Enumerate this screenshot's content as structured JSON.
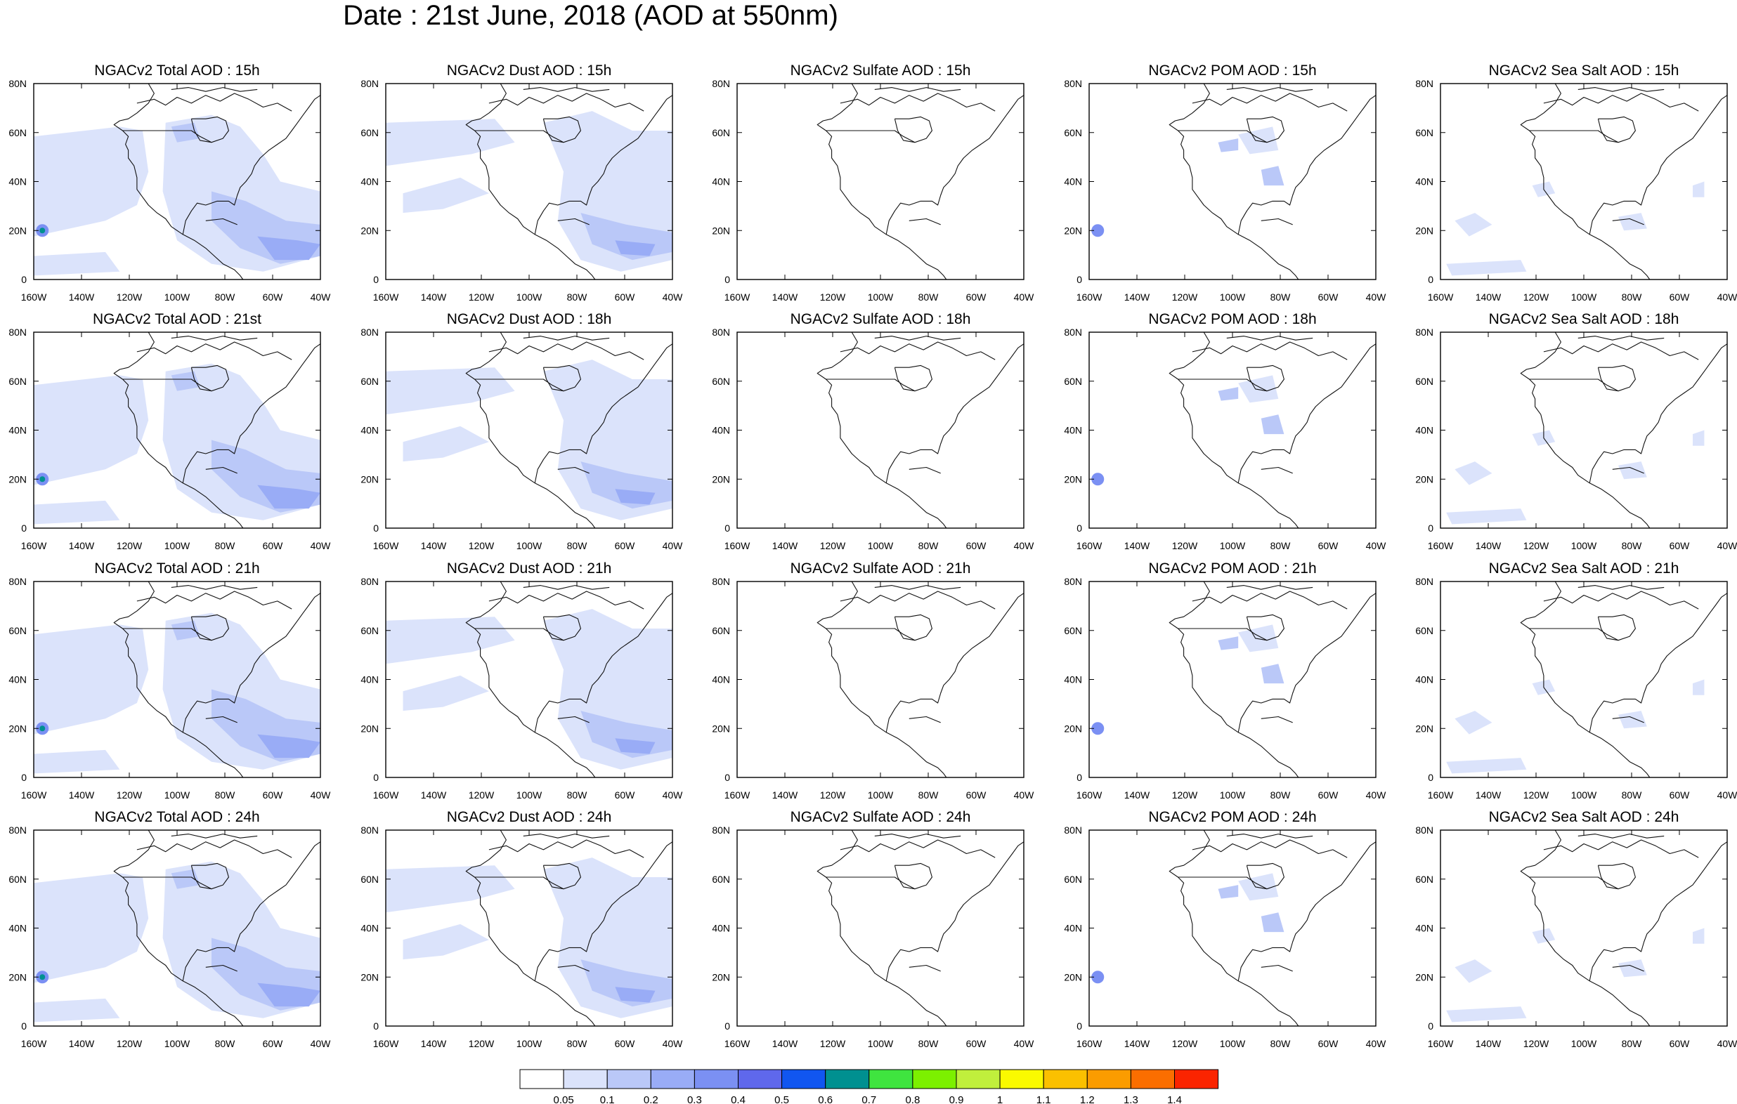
{
  "title": "Date : 21st June, 2018 (AOD at 550nm)",
  "rows": [
    [
      "NGACv2 Total AOD : 15h",
      "NGACv2 Dust AOD : 15h",
      "NGACv2 Sulfate AOD : 15h",
      "NGACv2 POM AOD : 15h",
      "NGACv2 Sea Salt AOD : 15h"
    ],
    [
      "NGACv2 Total AOD : 21st",
      "NGACv2 Dust AOD : 18h",
      "NGACv2 Sulfate AOD : 18h",
      "NGACv2 POM AOD : 18h",
      "NGACv2 Sea Salt AOD : 18h"
    ],
    [
      "NGACv2 Total AOD : 21h",
      "NGACv2 Dust AOD : 21h",
      "NGACv2 Sulfate AOD : 21h",
      "NGACv2 POM AOD : 21h",
      "NGACv2 Sea Salt AOD : 21h"
    ],
    [
      "NGACv2 Total AOD : 24h",
      "NGACv2 Dust AOD : 24h",
      "NGACv2 Sulfate AOD : 24h",
      "NGACv2 POM AOD : 24h",
      "NGACv2 Sea Salt  AOD : 24h"
    ]
  ],
  "x_ticks": [
    "160W",
    "140W",
    "120W",
    "100W",
    "80W",
    "60W",
    "40W"
  ],
  "y_ticks": [
    "80N",
    "60N",
    "40N",
    "20N",
    "0"
  ],
  "colorbar": {
    "labels": [
      "0.05",
      "0.1",
      "0.2",
      "0.3",
      "0.4",
      "0.5",
      "0.6",
      "0.7",
      "0.8",
      "0.9",
      "1",
      "1.1",
      "1.2",
      "1.3",
      "1.4"
    ],
    "colors": [
      "#ffffff",
      "#dbe3fb",
      "#bac8f8",
      "#99acf6",
      "#7b90f3",
      "#5f68ec",
      "#1156f0",
      "#009090",
      "#3fe43f",
      "#7cf000",
      "#c0ef3c",
      "#fafa00",
      "#fbc000",
      "#fb9c00",
      "#fb6e00",
      "#fb2400"
    ]
  }
}
